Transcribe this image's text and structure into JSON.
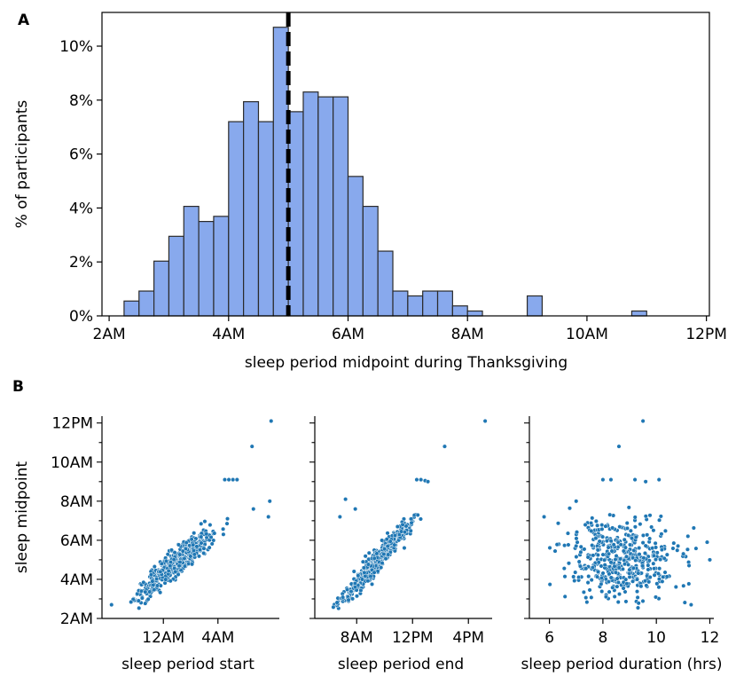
{
  "panels": {
    "A": "A",
    "B": "B"
  },
  "chart_data": [
    {
      "type": "bar",
      "panel": "A",
      "xlabel": "sleep period midpoint during Thanksgiving",
      "ylabel": "% of participants",
      "x_ticks": [
        {
          "value": 2,
          "label": "2AM"
        },
        {
          "value": 4,
          "label": "4AM"
        },
        {
          "value": 6,
          "label": "6AM"
        },
        {
          "value": 8,
          "label": "8AM"
        },
        {
          "value": 10,
          "label": "10AM"
        },
        {
          "value": 12,
          "label": "12PM"
        }
      ],
      "y_ticks": [
        {
          "value": 0,
          "label": "0%"
        },
        {
          "value": 2,
          "label": "2%"
        },
        {
          "value": 4,
          "label": "4%"
        },
        {
          "value": 6,
          "label": "6%"
        },
        {
          "value": 8,
          "label": "8%"
        },
        {
          "value": 10,
          "label": "10%"
        }
      ],
      "xlim": [
        1.88,
        12.05
      ],
      "ylim": [
        0,
        11.25
      ],
      "bin_width": 0.25,
      "bin_starts": [
        2.25,
        2.5,
        2.75,
        3.0,
        3.25,
        3.5,
        3.75,
        4.0,
        4.25,
        4.5,
        4.75,
        5.0,
        5.25,
        5.5,
        5.75,
        6.0,
        6.25,
        6.5,
        6.75,
        7.0,
        7.25,
        7.5,
        7.75,
        8.0,
        8.25,
        8.5,
        8.75,
        9.0,
        9.25,
        9.5,
        9.75,
        10.0,
        10.25,
        10.5,
        10.75
      ],
      "values": [
        0.55,
        0.92,
        2.03,
        2.95,
        4.06,
        3.5,
        3.69,
        7.2,
        7.94,
        7.2,
        10.7,
        7.57,
        8.3,
        8.12,
        8.12,
        5.17,
        4.06,
        2.4,
        0.92,
        0.74,
        0.92,
        0.92,
        0.37,
        0.18,
        0,
        0,
        0,
        0.74,
        0,
        0,
        0,
        0,
        0,
        0,
        0.18
      ],
      "mean_line_x": 5.0,
      "bar_color": "#88a9ed",
      "edge_color": "#2b2b2b"
    },
    {
      "type": "scatter",
      "panel": "B1",
      "xlabel": "sleep period start",
      "ylabel": "sleep midpoint",
      "x_ticks": [
        {
          "value": 24,
          "label": "12AM"
        },
        {
          "value": 28,
          "label": "4AM"
        }
      ],
      "y_ticks": [
        {
          "value": 2,
          "label": "2AM"
        },
        {
          "value": 4,
          "label": "4AM"
        },
        {
          "value": 6,
          "label": "6AM"
        },
        {
          "value": 8,
          "label": "8AM"
        },
        {
          "value": 10,
          "label": "10AM"
        },
        {
          "value": 12,
          "label": "12PM"
        }
      ],
      "xlim": [
        19.5,
        32.5
      ],
      "ylim": [
        2.0,
        12.35
      ],
      "point_color": "#1f77b4",
      "outliers": [
        [
          31.9,
          12.1
        ],
        [
          30.5,
          10.8
        ],
        [
          31.8,
          8.0
        ],
        [
          31.7,
          7.2
        ],
        [
          28.5,
          9.1
        ],
        [
          28.8,
          9.1
        ],
        [
          29.1,
          9.1
        ],
        [
          29.4,
          9.1
        ],
        [
          28.7,
          7.1
        ],
        [
          28.4,
          6.3
        ],
        [
          30.6,
          7.6
        ],
        [
          20.2,
          2.7
        ]
      ],
      "bulk": {
        "x_mean": 24.8,
        "x_sd": 1.4,
        "y_slope": 0.62,
        "y_intercept": -10.6,
        "noise": 0.33,
        "y_min": 2.5,
        "y_max": 7.9
      }
    },
    {
      "type": "scatter",
      "panel": "B2",
      "xlabel": "sleep period end",
      "x_ticks": [
        {
          "value": 8,
          "label": "8AM"
        },
        {
          "value": 12,
          "label": "12PM"
        },
        {
          "value": 16,
          "label": "4PM"
        }
      ],
      "xlim": [
        5.0,
        17.7
      ],
      "ylim": [
        2.0,
        12.35
      ],
      "point_color": "#1f77b4",
      "outliers": [
        [
          17.2,
          12.1
        ],
        [
          14.3,
          10.8
        ],
        [
          12.3,
          9.1
        ],
        [
          12.6,
          9.1
        ],
        [
          12.9,
          9.05
        ],
        [
          13.1,
          9.0
        ],
        [
          6.8,
          7.2
        ],
        [
          7.2,
          8.1
        ],
        [
          7.9,
          7.6
        ]
      ],
      "bulk": {
        "x_mean": 9.4,
        "x_sd": 1.35,
        "y_slope": 0.82,
        "y_intercept": -2.8,
        "noise": 0.3,
        "y_min": 2.5,
        "y_max": 7.9
      }
    },
    {
      "type": "scatter",
      "panel": "B3",
      "xlabel": "sleep period duration (hrs)",
      "x_ticks": [
        {
          "value": 6,
          "label": "6"
        },
        {
          "value": 8,
          "label": "8"
        },
        {
          "value": 10,
          "label": "10"
        },
        {
          "value": 12,
          "label": "12"
        }
      ],
      "xlim": [
        5.25,
        12.15
      ],
      "ylim": [
        2.0,
        12.35
      ],
      "point_color": "#1f77b4",
      "outliers": [
        [
          9.5,
          12.1
        ],
        [
          8.6,
          10.8
        ],
        [
          8.0,
          9.1
        ],
        [
          8.3,
          9.1
        ],
        [
          9.2,
          9.1
        ],
        [
          10.1,
          9.1
        ],
        [
          9.6,
          9.0
        ],
        [
          5.8,
          7.2
        ],
        [
          11.9,
          5.9
        ],
        [
          12.0,
          5.0
        ],
        [
          11.3,
          2.7
        ],
        [
          7.0,
          8.0
        ]
      ],
      "bulk": {
        "x_mean": 8.8,
        "x_sd": 1.05,
        "y_mean": 5.0,
        "y_sd": 1.05,
        "y_min": 2.5,
        "y_max": 7.9
      }
    }
  ]
}
